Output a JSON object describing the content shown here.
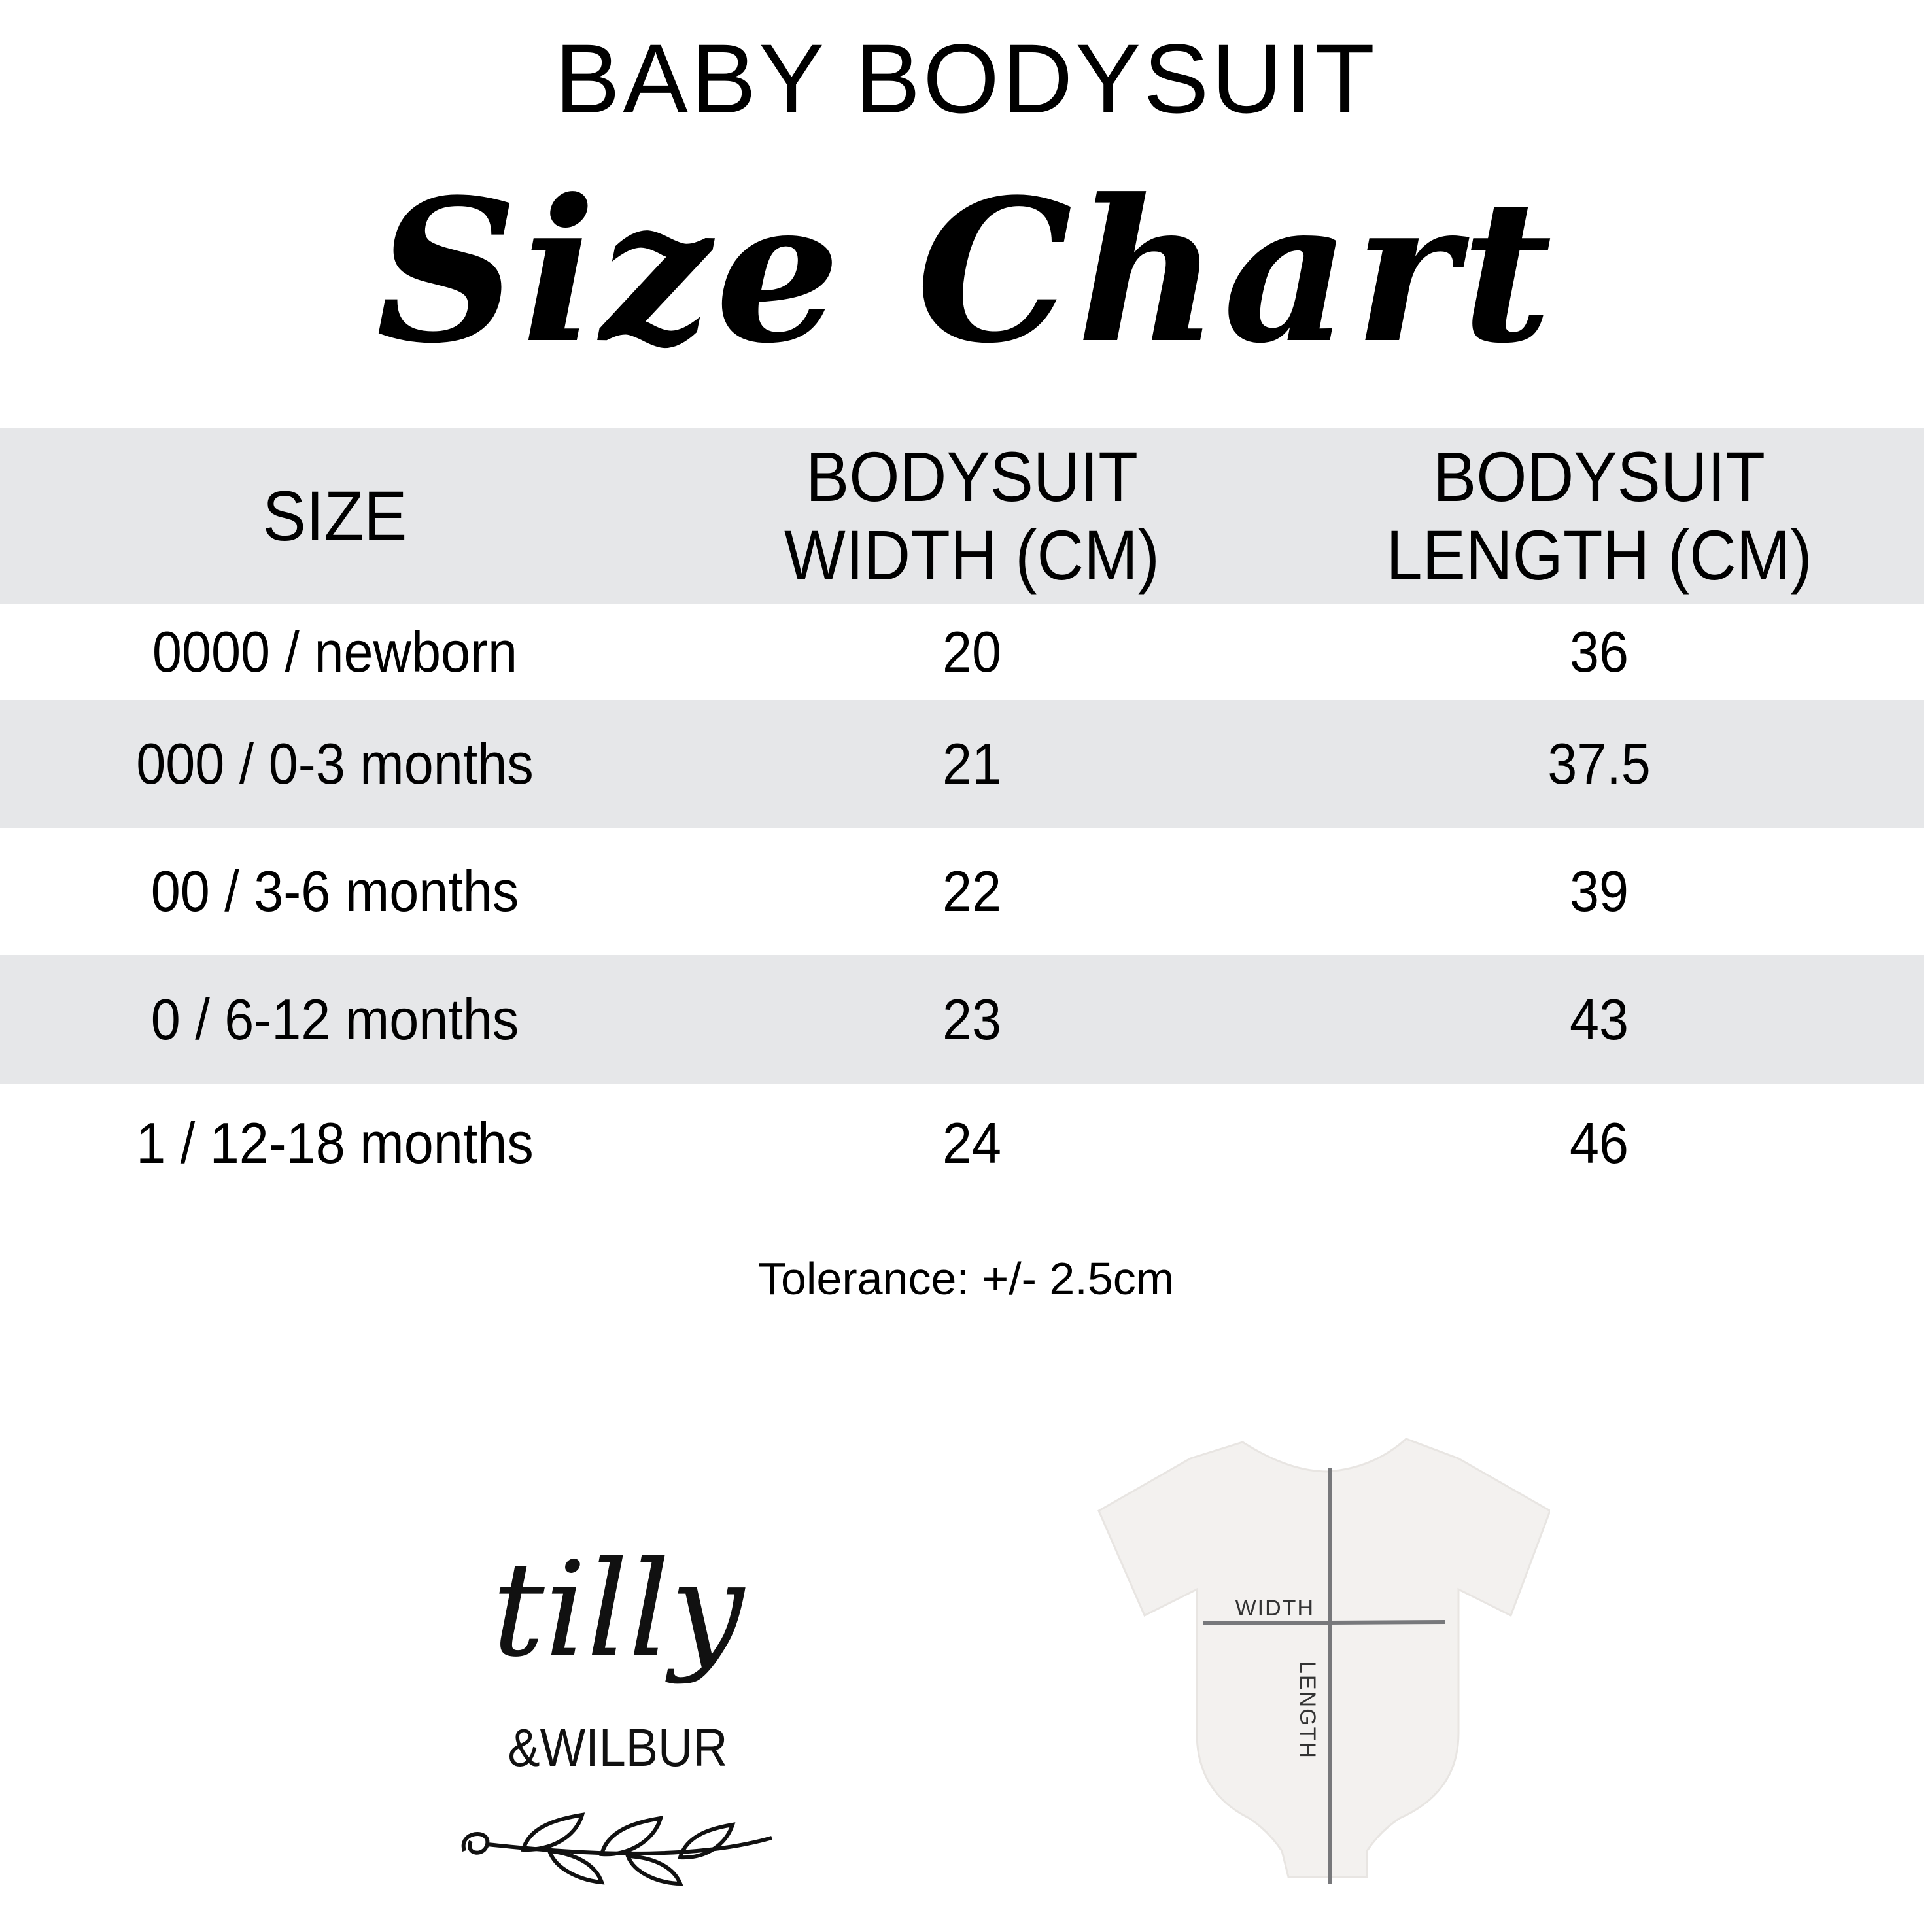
{
  "header": {
    "title": "BABY BODYSUIT",
    "subtitle": "Size Chart"
  },
  "table": {
    "columns": [
      "SIZE",
      "BODYSUIT WIDTH (CM)",
      "BODYSUIT LENGTH (CM)"
    ],
    "column_lines": [
      [
        "SIZE"
      ],
      [
        "BODYSUIT",
        "WIDTH (CM)"
      ],
      [
        "BODYSUIT",
        "LENGTH (CM)"
      ]
    ],
    "rows": [
      [
        "0000 / newborn",
        "20",
        "36"
      ],
      [
        "000 / 0-3 months",
        "21",
        "37.5"
      ],
      [
        "00 / 3-6 months",
        "22",
        "39"
      ],
      [
        "0 / 6-12 months",
        "23",
        "43"
      ],
      [
        "1 / 12-18 months",
        "24",
        "46"
      ]
    ]
  },
  "tolerance": "Tolerance: +/- 2.5cm",
  "diagram": {
    "width_label": "WIDTH",
    "length_label": "LENGTH",
    "line_color": "#77787b",
    "garment_color": "#f3f1ef"
  },
  "logo": {
    "text_line1": "tilly",
    "text_line2": "&WILBUR"
  },
  "colors": {
    "band": "#e6e7e9",
    "text": "#000000"
  }
}
